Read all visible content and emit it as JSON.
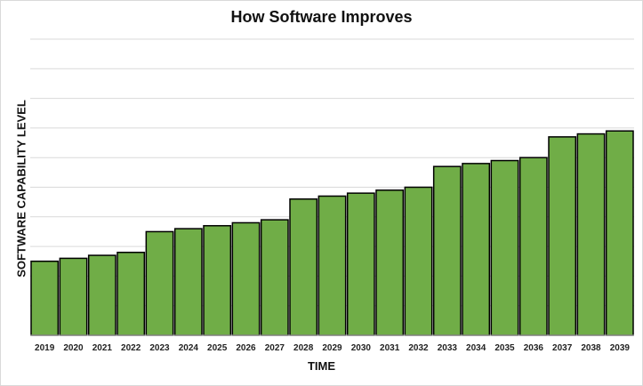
{
  "chart_data": {
    "type": "bar",
    "title": "How Software Improves",
    "xlabel": "TIME",
    "ylabel": "SOFTWARE CAPABILITY LEVEL",
    "categories": [
      "2019",
      "2020",
      "2021",
      "2022",
      "2023",
      "2024",
      "2025",
      "2026",
      "2027",
      "2028",
      "2029",
      "2030",
      "2031",
      "2032",
      "2033",
      "2034",
      "2035",
      "2036",
      "2037",
      "2038",
      "2039"
    ],
    "values": [
      2.5,
      2.6,
      2.7,
      2.8,
      3.5,
      3.6,
      3.7,
      3.8,
      3.9,
      4.6,
      4.7,
      4.8,
      4.9,
      5.0,
      5.7,
      5.8,
      5.9,
      6.0,
      6.7,
      6.8,
      6.9
    ],
    "ylim": [
      0,
      10
    ],
    "grid": true,
    "y_tick_labels": false,
    "legend": "none",
    "bar_color": "#70ad47",
    "bar_edge_color": "#000000",
    "grid_color": "#d9d9d9"
  }
}
